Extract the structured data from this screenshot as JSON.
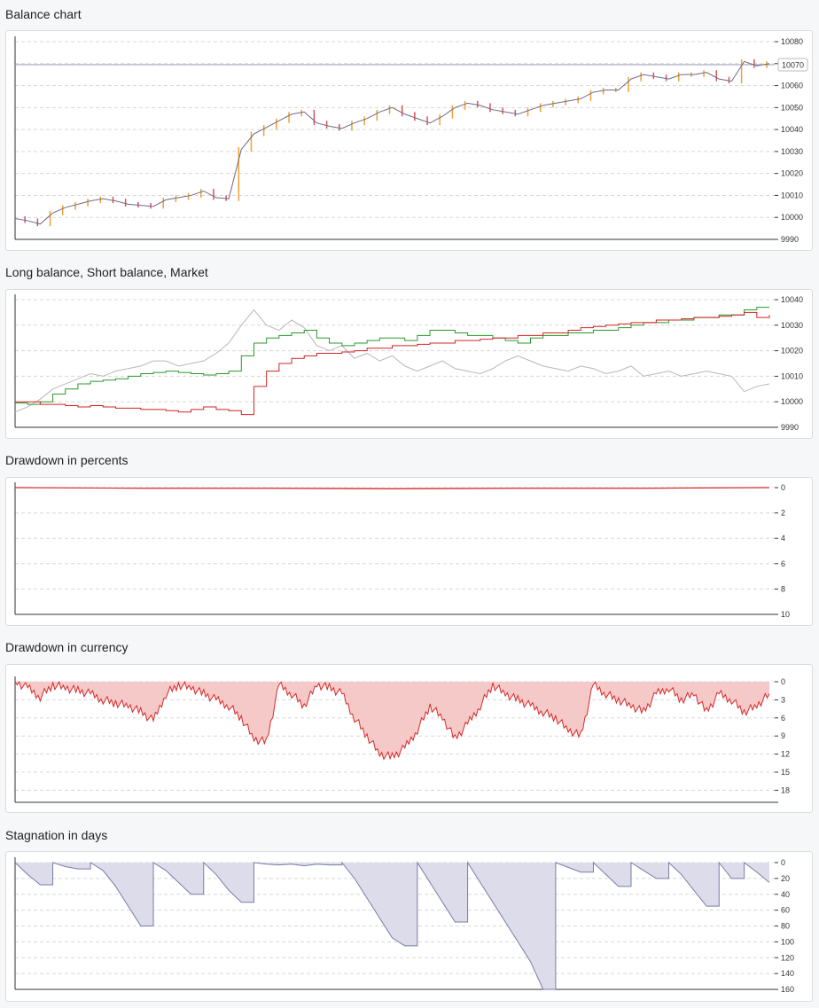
{
  "charts": {
    "balance": {
      "title": "Balance chart"
    },
    "ls": {
      "title": "Long balance, Short balance, Market"
    },
    "ddp": {
      "title": "Drawdown in percents"
    },
    "ddc": {
      "title": "Drawdown in currency"
    },
    "stag": {
      "title": "Stagnation in days"
    }
  },
  "colors": {
    "balance_line": "#6e6a8e",
    "candle_up": "#f0a030",
    "candle_down": "#e05050",
    "long": "#2a9a2a",
    "short": "#d22424",
    "market": "#b8b8b8",
    "drawdown": "#d42a2a",
    "drawdown_fill": "#f6c9c9",
    "stagnation": "#7a7ca8",
    "stagnation_fill": "#dcdcea"
  },
  "chart_data": [
    {
      "id": "balance",
      "type": "line",
      "title": "Balance chart",
      "ylim": [
        9990,
        10080
      ],
      "yticks": [
        9990,
        10000,
        10010,
        10020,
        10030,
        10040,
        10050,
        10060,
        10070,
        10080
      ],
      "current_value_label": "10070",
      "reference_line": 10069.5,
      "x": [
        0,
        1,
        2,
        3,
        4,
        5,
        6,
        7,
        8,
        9,
        10,
        11,
        12,
        13,
        14,
        15,
        16,
        17,
        18,
        19,
        20,
        21,
        22,
        23,
        24,
        25,
        26,
        27,
        28,
        29,
        30,
        31,
        32,
        33,
        34,
        35,
        36,
        37,
        38,
        39,
        40,
        41,
        42,
        43,
        44,
        45,
        46,
        47,
        48,
        49,
        50,
        51,
        52,
        53,
        54,
        55,
        56,
        57,
        58,
        59,
        60
      ],
      "series": [
        {
          "values": [
            9999.5,
            9998.5,
            9997,
            10002,
            10004.5,
            10006,
            10007.5,
            10008.5,
            10007.5,
            10006,
            10005.5,
            10005,
            10008,
            10009,
            10010,
            10012,
            10009,
            10008.5,
            10031,
            10038,
            10041,
            10044,
            10047,
            10048,
            10043,
            10041.5,
            10040.5,
            10043,
            10045,
            10048,
            10050,
            10047,
            10045,
            10043,
            10046,
            10050,
            10052,
            10051,
            10049,
            10048,
            10047,
            10049,
            10051,
            10052,
            10053,
            10054,
            10057,
            10058,
            10058,
            10063,
            10065,
            10064,
            10063,
            10065,
            10065,
            10066,
            10063,
            10062,
            10071,
            10069,
            10070
          ]
        }
      ]
    },
    {
      "id": "long_short_market",
      "type": "line",
      "title": "Long balance, Short balance, Market",
      "ylim": [
        9990,
        10040
      ],
      "yticks": [
        9990,
        10000,
        10010,
        10020,
        10030,
        10040
      ],
      "x": [
        0,
        1,
        2,
        3,
        4,
        5,
        6,
        7,
        8,
        9,
        10,
        11,
        12,
        13,
        14,
        15,
        16,
        17,
        18,
        19,
        20,
        21,
        22,
        23,
        24,
        25,
        26,
        27,
        28,
        29,
        30,
        31,
        32,
        33,
        34,
        35,
        36,
        37,
        38,
        39,
        40,
        41,
        42,
        43,
        44,
        45,
        46,
        47,
        48,
        49,
        50,
        51,
        52,
        53,
        54,
        55,
        56,
        57,
        58,
        59,
        60
      ],
      "series": [
        {
          "values": [
            9999.5,
            9999,
            10000,
            10003,
            10005,
            10007,
            10008,
            10008.5,
            10009,
            10010,
            10011,
            10011.5,
            10012,
            10011.5,
            10011,
            10010.5,
            10011,
            10012,
            10018,
            10023,
            10025,
            10026,
            10027,
            10028,
            10025,
            10023,
            10022,
            10023,
            10024,
            10025,
            10025,
            10024,
            10026,
            10028,
            10028,
            10027,
            10026,
            10026,
            10025,
            10024,
            10023,
            10025,
            10026,
            10026,
            10027,
            10027,
            10028,
            10028,
            10029,
            10030,
            10031,
            10031,
            10032,
            10032,
            10033,
            10033,
            10034,
            10034,
            10036,
            10037,
            10037
          ]
        },
        {
          "values": [
            10000,
            10000,
            9999,
            9999,
            9998.5,
            9998,
            9998.5,
            9998,
            9997.5,
            9997.5,
            9997,
            9997,
            9996.5,
            9996,
            9997,
            9998,
            9997,
            9996.5,
            9995,
            10006,
            10012,
            10015,
            10017,
            10018,
            10019,
            10019,
            10019.5,
            10020,
            10021,
            10021,
            10022,
            10022,
            10022.5,
            10023,
            10023,
            10024,
            10024,
            10024.5,
            10025,
            10025,
            10026,
            10026,
            10027,
            10027,
            10028,
            10029,
            10029.5,
            10030,
            10030.5,
            10031,
            10031,
            10032,
            10032,
            10032.5,
            10033,
            10033,
            10033.5,
            10034,
            10035,
            10033,
            10034
          ]
        },
        {
          "values": [
            9996,
            9998,
            10001,
            10005,
            10007,
            10009,
            10011,
            10010,
            10012,
            10013,
            10014,
            10016,
            10016,
            10014,
            10015,
            10016,
            10019,
            10023,
            10030,
            10036,
            10030,
            10028,
            10032,
            10029,
            10022,
            10020,
            10022,
            10017,
            10019,
            10016,
            10018,
            10014,
            10012,
            10014,
            10016,
            10013,
            10012,
            10011,
            10013,
            10016,
            10018,
            10016,
            10014,
            10013,
            10012,
            10014,
            10013,
            10011,
            10012,
            10014,
            10010,
            10011,
            10012,
            10010,
            10011,
            10012,
            10011,
            10010,
            10004,
            10006,
            10007
          ]
        }
      ]
    },
    {
      "id": "drawdown_percent",
      "type": "area",
      "title": "Drawdown in percents",
      "ylim": [
        0,
        10
      ],
      "yticks": [
        0,
        2,
        4,
        6,
        8,
        10
      ],
      "y_inverted": true,
      "x": [
        0,
        10,
        20,
        30,
        40,
        50,
        60
      ],
      "series": [
        {
          "values": [
            0,
            0.05,
            0.05,
            0.1,
            0.05,
            0.05,
            0
          ]
        }
      ]
    },
    {
      "id": "drawdown_currency",
      "type": "area",
      "title": "Drawdown in currency",
      "ylim": [
        0,
        20
      ],
      "yticks": [
        0,
        3,
        6,
        9,
        12,
        15,
        18
      ],
      "y_inverted": true,
      "x": [
        0,
        1,
        2,
        3,
        4,
        5,
        6,
        7,
        8,
        9,
        10,
        11,
        12,
        13,
        14,
        15,
        16,
        17,
        18,
        19,
        20,
        21,
        22,
        23,
        24,
        25,
        26,
        27,
        28,
        29,
        30,
        31,
        32,
        33,
        34,
        35,
        36,
        37,
        38,
        39,
        40,
        41,
        42,
        43,
        44,
        45,
        46,
        47,
        48,
        49,
        50,
        51,
        52,
        53,
        54,
        55,
        56,
        57,
        58,
        59,
        60
      ],
      "series": [
        {
          "values": [
            0,
            1,
            2.5,
            0.5,
            1,
            1.5,
            2,
            3,
            3.5,
            4,
            5,
            6.5,
            2,
            0.5,
            1,
            2,
            3,
            4,
            6,
            9.5,
            10,
            0.5,
            2,
            4,
            0.5,
            1,
            2,
            6,
            9,
            12,
            12.5,
            11,
            8,
            4,
            6,
            9.5,
            7,
            4,
            0.5,
            2,
            3,
            4,
            5,
            6,
            8,
            9,
            0.5,
            2,
            3,
            4,
            5,
            2,
            1,
            3,
            2,
            5,
            2,
            3,
            5,
            4,
            2
          ]
        }
      ]
    },
    {
      "id": "stagnation_days",
      "type": "area",
      "title": "Stagnation in days",
      "ylim": [
        0,
        160
      ],
      "yticks": [
        0,
        20,
        40,
        60,
        80,
        100,
        120,
        140,
        160
      ],
      "y_inverted": true,
      "x": [
        0,
        1,
        2,
        3,
        4,
        5,
        6,
        7,
        8,
        9,
        10,
        11,
        12,
        13,
        14,
        15,
        16,
        17,
        18,
        19,
        20,
        21,
        22,
        23,
        24,
        25,
        26,
        27,
        28,
        29,
        30,
        31,
        32,
        33,
        34,
        35,
        36,
        37,
        38,
        39,
        40,
        41,
        42,
        43,
        44,
        45,
        46,
        47,
        48,
        49,
        50,
        51,
        52,
        53,
        54,
        55,
        56,
        57,
        58,
        59,
        60
      ],
      "series": [
        {
          "values": [
            0,
            15,
            28,
            0,
            5,
            8,
            0,
            10,
            30,
            55,
            80,
            0,
            10,
            25,
            40,
            0,
            15,
            35,
            50,
            0,
            2,
            3,
            2,
            4,
            2,
            3,
            0,
            20,
            45,
            70,
            95,
            105,
            0,
            25,
            50,
            75,
            0,
            25,
            50,
            75,
            100,
            125,
            160,
            0,
            6,
            12,
            0,
            15,
            30,
            0,
            10,
            20,
            0,
            15,
            35,
            55,
            0,
            20,
            0,
            12,
            25
          ]
        }
      ]
    }
  ]
}
